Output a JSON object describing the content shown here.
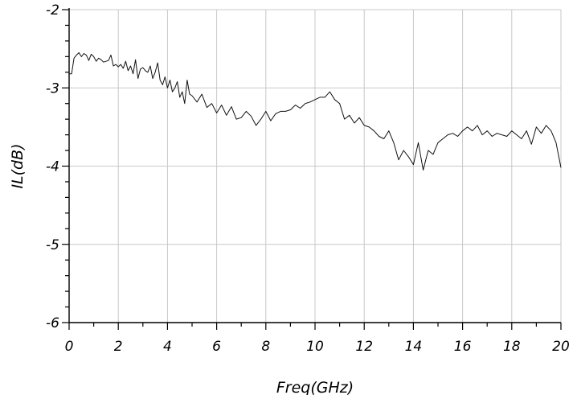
{
  "chart_data": {
    "type": "line",
    "title": "",
    "xlabel": "Freq(GHz)",
    "ylabel": "IL(dB)",
    "xlim": [
      0,
      20
    ],
    "ylim": [
      -6,
      -2
    ],
    "grid": true,
    "x_ticks": [
      0,
      2,
      4,
      6,
      8,
      10,
      12,
      14,
      16,
      18,
      20
    ],
    "y_ticks": [
      -6,
      -5,
      -4,
      -3,
      -2
    ],
    "x_tick_labels": [
      "0",
      "2",
      "4",
      "6",
      "8",
      "10",
      "12",
      "14",
      "16",
      "18",
      "20"
    ],
    "y_tick_labels": [
      "-6",
      "-5",
      "-4",
      "-3",
      "-2"
    ],
    "series": [
      {
        "x": [
          0,
          0.1,
          0.2,
          0.3,
          0.4,
          0.5,
          0.6,
          0.7,
          0.8,
          0.9,
          1.0,
          1.1,
          1.2,
          1.3,
          1.4,
          1.5,
          1.6,
          1.7,
          1.8,
          1.9,
          2.0,
          2.1,
          2.2,
          2.3,
          2.4,
          2.5,
          2.6,
          2.7,
          2.8,
          2.9,
          3.0,
          3.1,
          3.2,
          3.3,
          3.4,
          3.5,
          3.6,
          3.7,
          3.8,
          3.9,
          4.0,
          4.1,
          4.2,
          4.3,
          4.4,
          4.5,
          4.6,
          4.7,
          4.8,
          4.9,
          5.0,
          5.2,
          5.4,
          5.6,
          5.8,
          6.0,
          6.2,
          6.4,
          6.6,
          6.8,
          7.0,
          7.2,
          7.4,
          7.6,
          7.8,
          8.0,
          8.2,
          8.4,
          8.6,
          8.8,
          9.0,
          9.2,
          9.4,
          9.6,
          9.8,
          10.0,
          10.2,
          10.4,
          10.6,
          10.8,
          11.0,
          11.2,
          11.4,
          11.6,
          11.8,
          12.0,
          12.2,
          12.4,
          12.6,
          12.8,
          13.0,
          13.2,
          13.4,
          13.6,
          13.8,
          14.0,
          14.2,
          14.4,
          14.6,
          14.8,
          15.0,
          15.2,
          15.4,
          15.6,
          15.8,
          16.0,
          16.2,
          16.4,
          16.6,
          16.8,
          17.0,
          17.2,
          17.4,
          17.6,
          17.8,
          18.0,
          18.2,
          18.4,
          18.6,
          18.8,
          19.0,
          19.2,
          19.4,
          19.6,
          19.8,
          20.0
        ],
        "y": [
          -2.82,
          -2.82,
          -2.62,
          -2.58,
          -2.55,
          -2.6,
          -2.56,
          -2.58,
          -2.65,
          -2.57,
          -2.6,
          -2.66,
          -2.62,
          -2.64,
          -2.67,
          -2.66,
          -2.65,
          -2.58,
          -2.72,
          -2.7,
          -2.73,
          -2.7,
          -2.75,
          -2.66,
          -2.78,
          -2.72,
          -2.82,
          -2.64,
          -2.88,
          -2.76,
          -2.74,
          -2.78,
          -2.8,
          -2.72,
          -2.88,
          -2.8,
          -2.68,
          -2.9,
          -2.96,
          -2.86,
          -3.0,
          -2.9,
          -3.05,
          -3.0,
          -2.92,
          -3.12,
          -3.05,
          -3.2,
          -2.9,
          -3.08,
          -3.1,
          -3.18,
          -3.08,
          -3.25,
          -3.2,
          -3.32,
          -3.22,
          -3.35,
          -3.24,
          -3.4,
          -3.38,
          -3.3,
          -3.36,
          -3.48,
          -3.4,
          -3.3,
          -3.42,
          -3.33,
          -3.3,
          -3.3,
          -3.28,
          -3.22,
          -3.26,
          -3.2,
          -3.18,
          -3.15,
          -3.12,
          -3.12,
          -3.05,
          -3.15,
          -3.2,
          -3.4,
          -3.35,
          -3.45,
          -3.38,
          -3.48,
          -3.5,
          -3.55,
          -3.62,
          -3.65,
          -3.55,
          -3.7,
          -3.92,
          -3.8,
          -3.88,
          -3.98,
          -3.7,
          -4.05,
          -3.8,
          -3.85,
          -3.7,
          -3.65,
          -3.6,
          -3.58,
          -3.62,
          -3.55,
          -3.5,
          -3.55,
          -3.48,
          -3.6,
          -3.55,
          -3.62,
          -3.58,
          -3.6,
          -3.62,
          -3.55,
          -3.6,
          -3.65,
          -3.55,
          -3.72,
          -3.5,
          -3.58,
          -3.48,
          -3.55,
          -3.7,
          -4.02
        ]
      }
    ]
  }
}
